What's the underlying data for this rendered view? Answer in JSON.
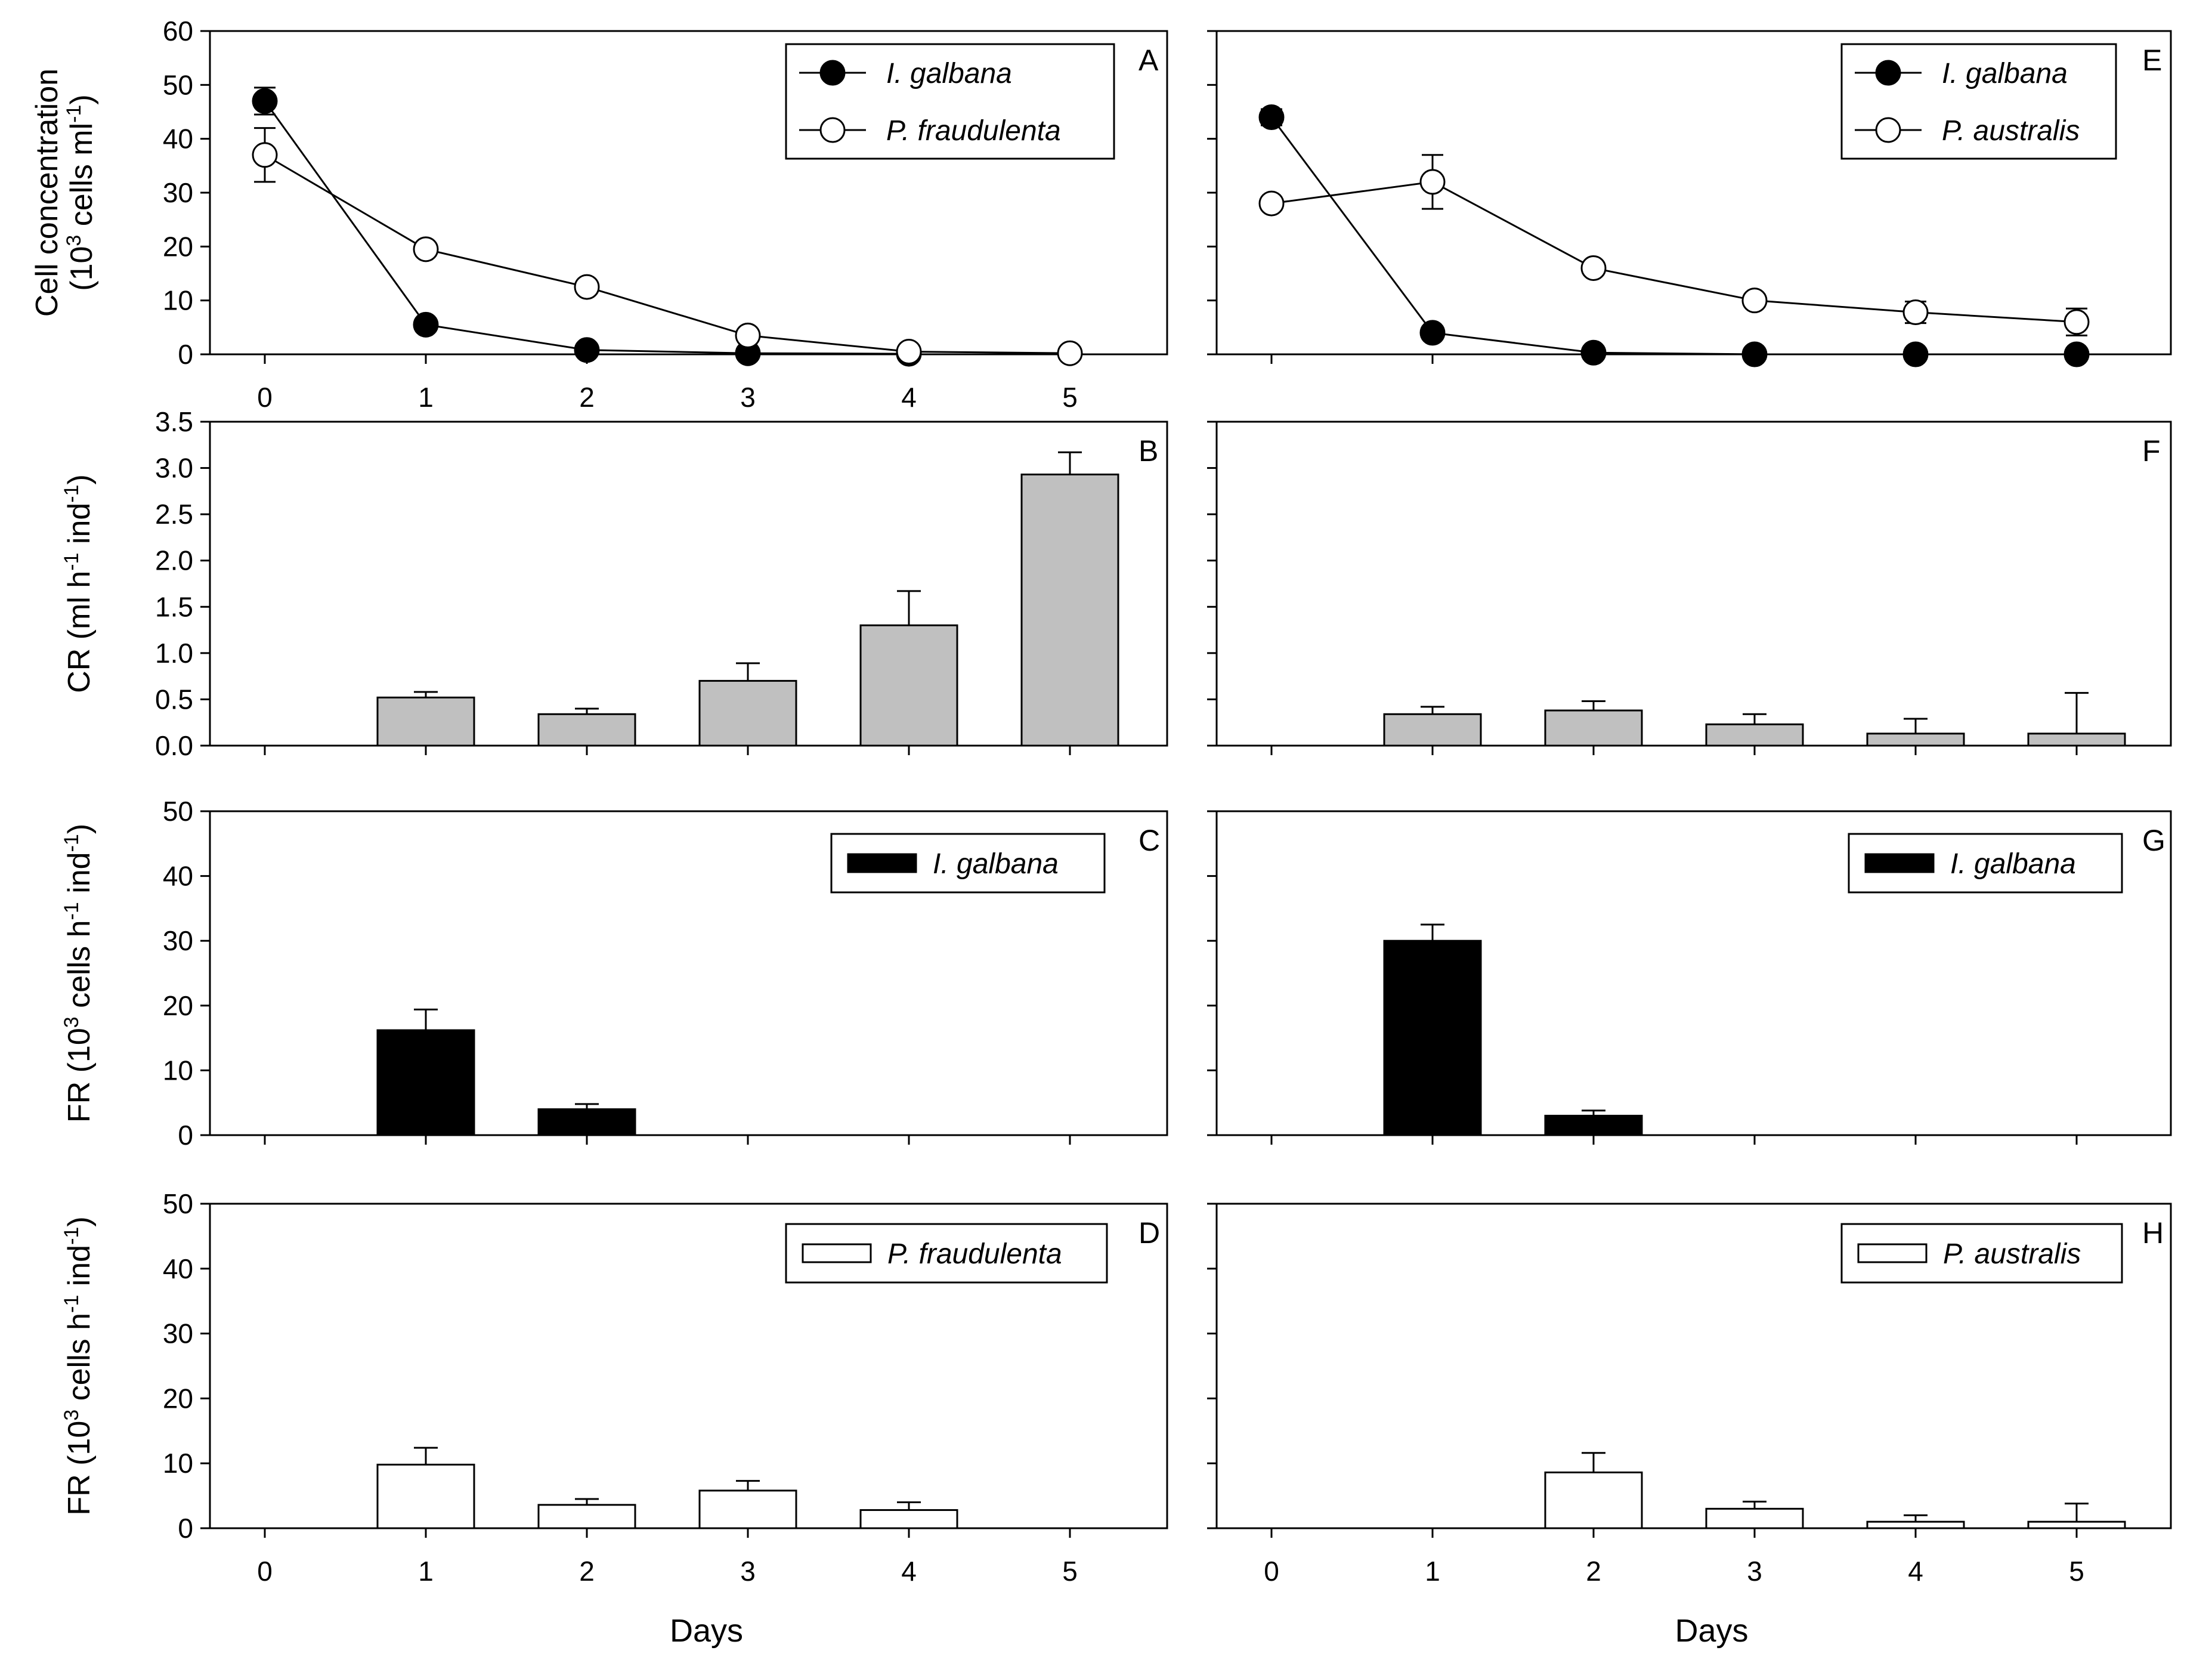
{
  "chart_data": [
    {
      "panel": "A",
      "type": "line",
      "x": [
        0,
        1,
        2,
        3,
        4,
        5
      ],
      "xticklabels": [
        "0",
        "1",
        "2",
        "3",
        "4",
        "5"
      ],
      "ylim": [
        0,
        60
      ],
      "yticks": [
        0,
        10,
        20,
        30,
        40,
        50,
        60
      ],
      "ylabel": [
        "Cell concentration",
        "(10",
        "3",
        " cells ml",
        "-1",
        ")"
      ],
      "legend": "top-right",
      "series": [
        {
          "name": "I. galbana",
          "marker": "filled-circle",
          "values": [
            47,
            5.5,
            0.8,
            0.2,
            0.1,
            null
          ],
          "errors": [
            2.5,
            0.5,
            0.2,
            0,
            0,
            null
          ]
        },
        {
          "name": "P. fraudulenta",
          "marker": "open-circle",
          "values": [
            37,
            19.5,
            12.5,
            3.5,
            0.5,
            0.2
          ],
          "errors": [
            5,
            0.8,
            0.8,
            0.5,
            0.2,
            0
          ]
        }
      ]
    },
    {
      "panel": "B",
      "type": "bar",
      "fill": "#c0c0c0",
      "x": [
        0,
        1,
        2,
        3,
        4,
        5
      ],
      "ylim": [
        0,
        3.5
      ],
      "yticks": [
        0.0,
        0.5,
        1.0,
        1.5,
        2.0,
        2.5,
        3.0,
        3.5
      ],
      "yticklabels": [
        "0.0",
        "0.5",
        "1.0",
        "1.5",
        "2.0",
        "2.5",
        "3.0",
        "3.5"
      ],
      "ylabel": [
        "CR (ml h",
        "-1",
        " ind",
        "-1",
        ")"
      ],
      "values": [
        null,
        0.52,
        0.34,
        0.7,
        1.3,
        2.93
      ],
      "errors": [
        null,
        0.06,
        0.06,
        0.19,
        0.37,
        0.24
      ]
    },
    {
      "panel": "C",
      "type": "bar",
      "fill": "#000000",
      "x": [
        0,
        1,
        2,
        3,
        4,
        5
      ],
      "ylim": [
        0,
        50
      ],
      "yticks": [
        0,
        10,
        20,
        30,
        40,
        50
      ],
      "ylabel": [
        "FR (10",
        "3",
        " cells h",
        "-1",
        " ind",
        "-1",
        ")"
      ],
      "legend": "top-right",
      "series_name": "I. galbana",
      "values": [
        null,
        16.2,
        4.0,
        null,
        null,
        null
      ],
      "errors": [
        null,
        3.2,
        0.8,
        null,
        null,
        null
      ]
    },
    {
      "panel": "D",
      "type": "bar",
      "fill": "#ffffff",
      "x": [
        0,
        1,
        2,
        3,
        4,
        5
      ],
      "xticklabels": [
        "0",
        "1",
        "2",
        "3",
        "4",
        "5"
      ],
      "ylim": [
        0,
        50
      ],
      "yticks": [
        0,
        10,
        20,
        30,
        40,
        50
      ],
      "ylabel": [
        "FR (10",
        "3",
        " cells h",
        "-1",
        " ind",
        "-1",
        ")"
      ],
      "xlabel": "Days",
      "legend": "top-right",
      "series_name": "P. fraudulenta",
      "values": [
        null,
        9.8,
        3.6,
        5.8,
        2.8,
        null
      ],
      "errors": [
        null,
        2.6,
        0.9,
        1.5,
        1.2,
        null
      ]
    },
    {
      "panel": "E",
      "type": "line",
      "x": [
        0,
        1,
        2,
        3,
        4,
        5
      ],
      "ylim": [
        0,
        60
      ],
      "yticks": [
        0,
        10,
        20,
        30,
        40,
        50,
        60
      ],
      "legend": "top-right",
      "series": [
        {
          "name": "I. galbana",
          "marker": "filled-circle",
          "values": [
            44,
            4,
            0.3,
            0,
            0,
            0
          ],
          "errors": [
            1.5,
            0.5,
            0.1,
            0,
            0,
            0
          ]
        },
        {
          "name": "P. australis",
          "marker": "open-circle",
          "values": [
            28,
            32,
            16,
            10,
            7.8,
            6
          ],
          "errors": [
            0.8,
            5,
            0.8,
            0.8,
            2,
            2.5
          ]
        }
      ]
    },
    {
      "panel": "F",
      "type": "bar",
      "fill": "#c0c0c0",
      "x": [
        0,
        1,
        2,
        3,
        4,
        5
      ],
      "ylim": [
        0,
        3.5
      ],
      "yticks": [
        0.0,
        0.5,
        1.0,
        1.5,
        2.0,
        2.5,
        3.0,
        3.5
      ],
      "values": [
        null,
        0.34,
        0.38,
        0.23,
        0.13,
        0.13
      ],
      "errors": [
        null,
        0.08,
        0.1,
        0.11,
        0.16,
        0.44
      ]
    },
    {
      "panel": "G",
      "type": "bar",
      "fill": "#000000",
      "x": [
        0,
        1,
        2,
        3,
        4,
        5
      ],
      "ylim": [
        0,
        50
      ],
      "yticks": [
        0,
        10,
        20,
        30,
        40,
        50
      ],
      "legend": "top-right",
      "series_name": "I. galbana",
      "values": [
        null,
        30.0,
        3.0,
        null,
        null,
        null
      ],
      "errors": [
        null,
        2.5,
        0.8,
        null,
        null,
        null
      ]
    },
    {
      "panel": "H",
      "type": "bar",
      "fill": "#ffffff",
      "x": [
        0,
        1,
        2,
        3,
        4,
        5
      ],
      "xticklabels": [
        "0",
        "1",
        "2",
        "3",
        "4",
        "5"
      ],
      "ylim": [
        0,
        50
      ],
      "yticks": [
        0,
        10,
        20,
        30,
        40,
        50
      ],
      "xlabel": "Days",
      "legend": "top-right",
      "series_name": "P. australis",
      "values": [
        null,
        null,
        8.6,
        3.0,
        1.0,
        1.0
      ],
      "errors": [
        null,
        null,
        3.0,
        1.1,
        1.0,
        2.8
      ]
    }
  ]
}
